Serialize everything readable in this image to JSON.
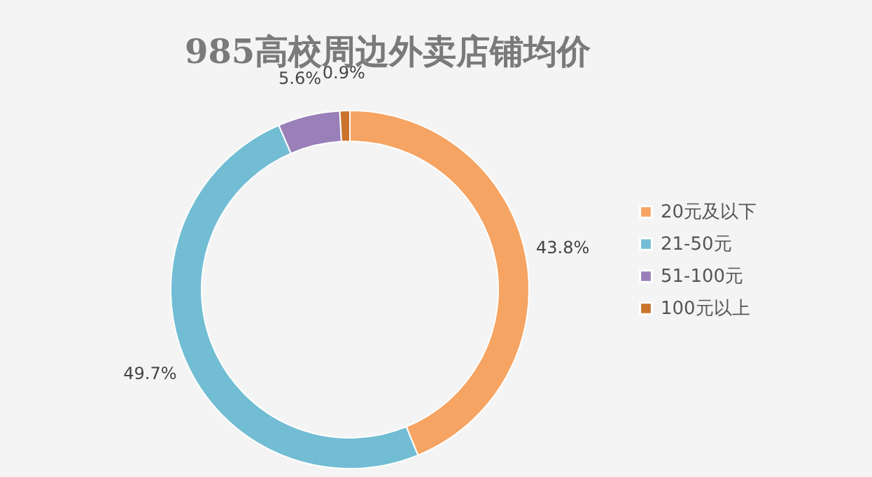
{
  "chart_data": {
    "type": "donut",
    "title": "985高校周边外卖店铺均价",
    "categories": [
      "20元及以下",
      "21-50元",
      "51-100元",
      "100元以上"
    ],
    "values": [
      43.8,
      49.7,
      5.6,
      0.9
    ],
    "value_labels": [
      "43.8%",
      "49.7%",
      "5.6%",
      "0.9%"
    ],
    "colors": [
      "#f5a463",
      "#72bdd3",
      "#9a80b8",
      "#c9732c"
    ],
    "legend": "right"
  }
}
